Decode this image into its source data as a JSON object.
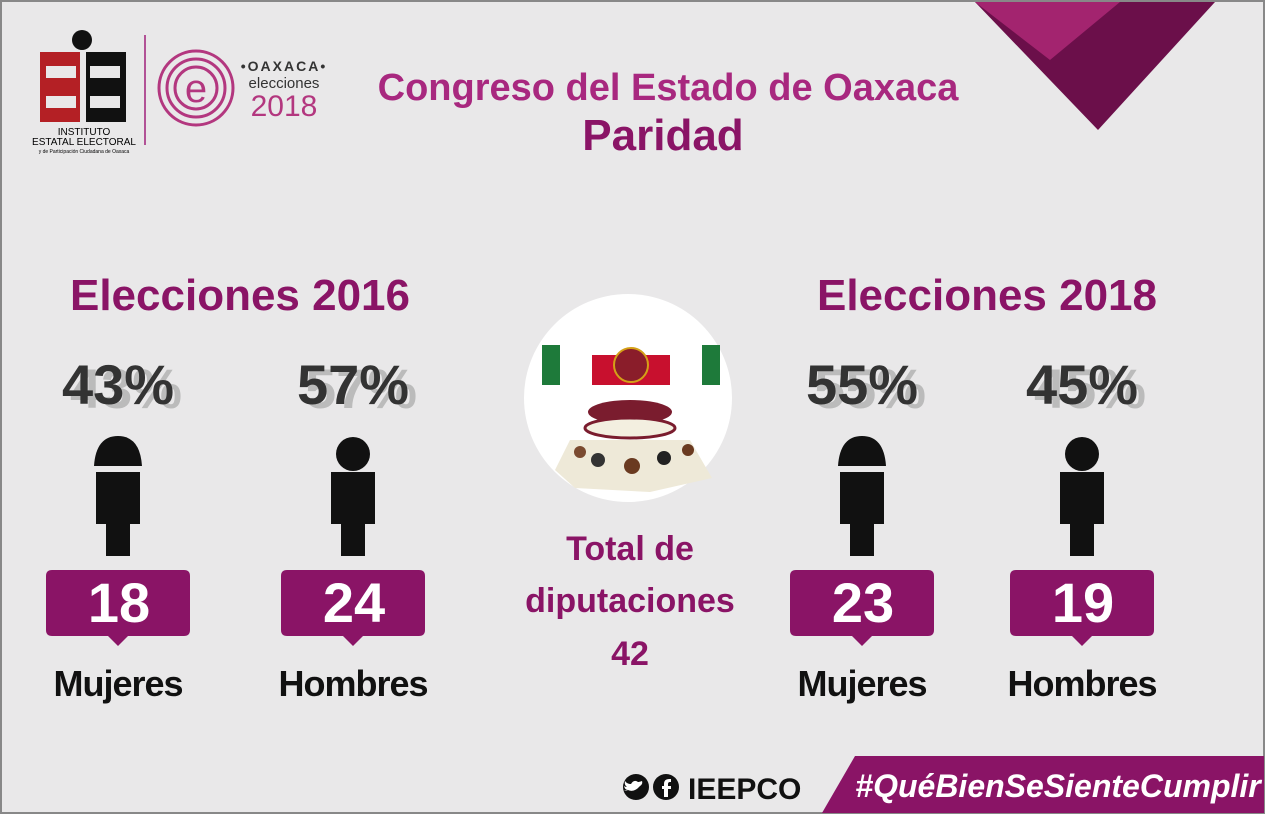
{
  "header": {
    "logo": {
      "line1": "INSTITUTO",
      "line2": "ESTATAL ELECTORAL",
      "line3": "y de Participación Ciudadana de Oaxaca"
    },
    "badge": {
      "place": "•OAXACA•",
      "word": "elecciones",
      "year": "2018"
    },
    "title": "Congreso del Estado de Oaxaca",
    "subtitle": "Paridad"
  },
  "sections": [
    {
      "heading": "Elecciones 2016",
      "groups": [
        {
          "percent": "43%",
          "count": "18",
          "label": "Mujeres"
        },
        {
          "percent": "57%",
          "count": "24",
          "label": "Hombres"
        }
      ]
    },
    {
      "heading": "Elecciones 2018",
      "groups": [
        {
          "percent": "55%",
          "count": "23",
          "label": "Mujeres"
        },
        {
          "percent": "45%",
          "count": "19",
          "label": "Hombres"
        }
      ]
    }
  ],
  "center": {
    "line1": "Total de",
    "line2": "diputaciones",
    "total": "42"
  },
  "footer": {
    "handle": "IEEPCO",
    "hashtag": "#QuéBienSeSienteCumplir"
  }
}
